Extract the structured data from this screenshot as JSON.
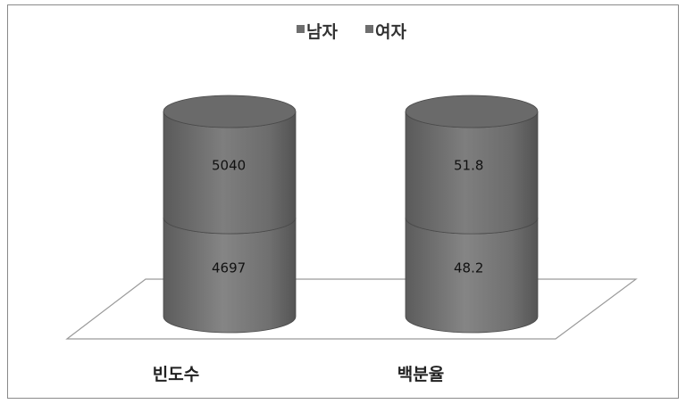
{
  "chart_data": {
    "type": "bar",
    "style": "3d-stacked-cylinder",
    "categories": [
      "빈도수",
      "백분율"
    ],
    "series": [
      {
        "name": "남자",
        "values": [
          4697,
          48.2
        ],
        "color": "#6e6e6e"
      },
      {
        "name": "여자",
        "values": [
          5040,
          51.8
        ],
        "color": "#6e6e6e"
      }
    ],
    "data_labels": [
      [
        "4697",
        "48.2"
      ],
      [
        "5040",
        "51.8"
      ]
    ],
    "legend_position": "top",
    "grid": false,
    "stack_mode": "percent"
  }
}
